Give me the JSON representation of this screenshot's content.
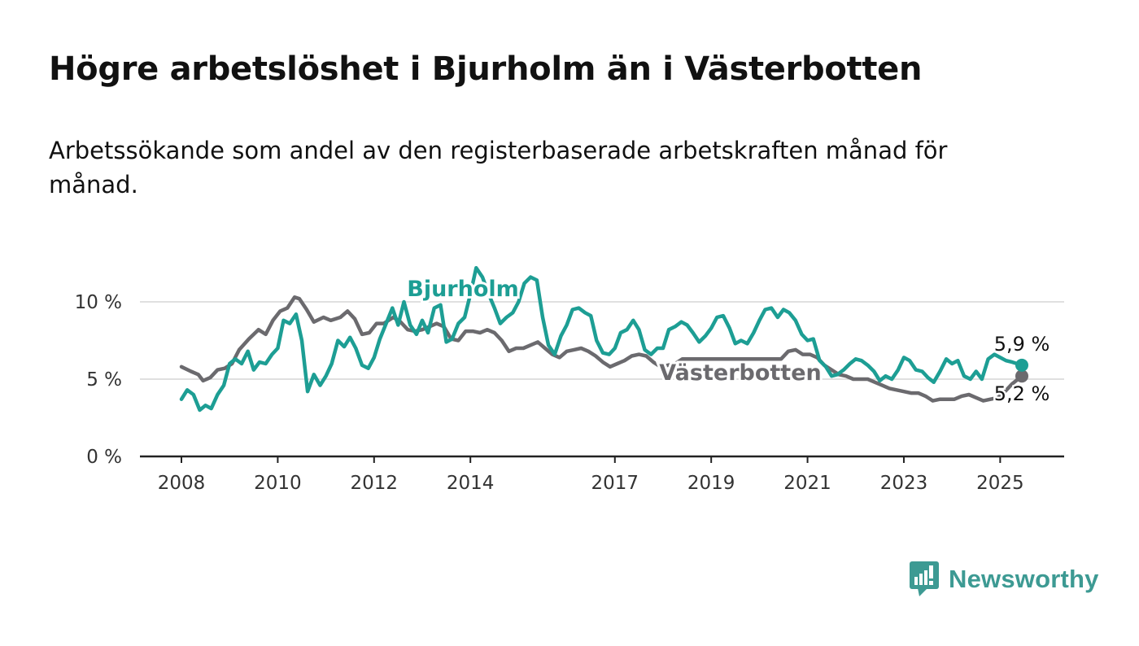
{
  "title": "Högre arbetslöshet i Bjurholm än i Västerbotten",
  "subtitle": "Arbetssökande som andel av den registerbaserade arbetskraften månad för månad.",
  "brand": {
    "name": "Newsworthy",
    "icon": "newsworthy-logo-icon",
    "color": "#3d9a93"
  },
  "chart_data": {
    "type": "line",
    "title": "Högre arbetslöshet i Bjurholm än i Västerbotten",
    "subtitle": "Arbetssökande som andel av den registerbaserade arbetskraften månad för månad.",
    "xlabel": "",
    "ylabel": "",
    "ylim": [
      0,
      12.5
    ],
    "xlim": [
      2008.0,
      2025.6
    ],
    "grid": true,
    "legend": "inline labels",
    "x_ticks": [
      {
        "value": 2008,
        "label": "2008"
      },
      {
        "value": 2010,
        "label": "2010"
      },
      {
        "value": 2012,
        "label": "2012"
      },
      {
        "value": 2014,
        "label": "2014"
      },
      {
        "value": 2017,
        "label": "2017"
      },
      {
        "value": 2019,
        "label": "2019"
      },
      {
        "value": 2021,
        "label": "2021"
      },
      {
        "value": 2023,
        "label": "2023"
      },
      {
        "value": 2025,
        "label": "2025"
      }
    ],
    "y_ticks": [
      {
        "value": 0,
        "label": "0 %"
      },
      {
        "value": 5,
        "label": "5 %"
      },
      {
        "value": 10,
        "label": "10 %"
      }
    ],
    "series": [
      {
        "name": "Västerbotten",
        "color": "#6b6a6e",
        "end_label": "5,2 %",
        "points": [
          [
            2008.0,
            5.8
          ],
          [
            2008.2,
            5.5
          ],
          [
            2008.35,
            5.3
          ],
          [
            2008.45,
            4.9
          ],
          [
            2008.6,
            5.1
          ],
          [
            2008.75,
            5.6
          ],
          [
            2008.9,
            5.7
          ],
          [
            2009.05,
            6.0
          ],
          [
            2009.2,
            6.9
          ],
          [
            2009.4,
            7.6
          ],
          [
            2009.6,
            8.2
          ],
          [
            2009.75,
            7.9
          ],
          [
            2009.9,
            8.8
          ],
          [
            2010.05,
            9.4
          ],
          [
            2010.2,
            9.6
          ],
          [
            2010.35,
            10.3
          ],
          [
            2010.45,
            10.2
          ],
          [
            2010.6,
            9.5
          ],
          [
            2010.75,
            8.7
          ],
          [
            2010.95,
            9.0
          ],
          [
            2011.1,
            8.8
          ],
          [
            2011.3,
            9.0
          ],
          [
            2011.45,
            9.4
          ],
          [
            2011.6,
            8.9
          ],
          [
            2011.75,
            7.9
          ],
          [
            2011.9,
            8.0
          ],
          [
            2012.05,
            8.6
          ],
          [
            2012.2,
            8.6
          ],
          [
            2012.4,
            9.0
          ],
          [
            2012.55,
            8.7
          ],
          [
            2012.7,
            8.2
          ],
          [
            2012.85,
            8.1
          ],
          [
            2013.0,
            8.2
          ],
          [
            2013.15,
            8.4
          ],
          [
            2013.3,
            8.6
          ],
          [
            2013.45,
            8.4
          ],
          [
            2013.6,
            7.6
          ],
          [
            2013.75,
            7.5
          ],
          [
            2013.9,
            8.1
          ],
          [
            2014.05,
            8.1
          ],
          [
            2014.2,
            8.0
          ],
          [
            2014.35,
            8.2
          ],
          [
            2014.5,
            8.0
          ],
          [
            2014.65,
            7.5
          ],
          [
            2014.8,
            6.8
          ],
          [
            2014.95,
            7.0
          ],
          [
            2015.1,
            7.0
          ],
          [
            2015.25,
            7.2
          ],
          [
            2015.4,
            7.4
          ],
          [
            2015.55,
            7.0
          ],
          [
            2015.7,
            6.6
          ],
          [
            2015.85,
            6.4
          ],
          [
            2016.0,
            6.8
          ],
          [
            2016.15,
            6.9
          ],
          [
            2016.3,
            7.0
          ],
          [
            2016.45,
            6.8
          ],
          [
            2016.6,
            6.5
          ],
          [
            2016.75,
            6.1
          ],
          [
            2016.9,
            5.8
          ],
          [
            2017.05,
            6.0
          ],
          [
            2017.2,
            6.2
          ],
          [
            2017.35,
            6.5
          ],
          [
            2017.5,
            6.6
          ],
          [
            2017.65,
            6.5
          ],
          [
            2017.8,
            6.1
          ],
          [
            2017.95,
            5.8
          ],
          [
            2018.1,
            5.9
          ],
          [
            2018.25,
            6.0
          ],
          [
            2018.4,
            6.3
          ],
          [
            2020.45,
            6.3
          ],
          [
            2020.6,
            6.8
          ],
          [
            2020.75,
            6.9
          ],
          [
            2020.9,
            6.6
          ],
          [
            2021.05,
            6.6
          ],
          [
            2021.2,
            6.4
          ],
          [
            2021.35,
            5.9
          ],
          [
            2021.5,
            5.6
          ],
          [
            2021.65,
            5.3
          ],
          [
            2021.8,
            5.2
          ],
          [
            2021.95,
            5.0
          ],
          [
            2022.1,
            5.0
          ],
          [
            2022.25,
            5.0
          ],
          [
            2022.4,
            4.8
          ],
          [
            2022.55,
            4.6
          ],
          [
            2022.7,
            4.4
          ],
          [
            2022.85,
            4.3
          ],
          [
            2023.0,
            4.2
          ],
          [
            2023.15,
            4.1
          ],
          [
            2023.3,
            4.1
          ],
          [
            2023.45,
            3.9
          ],
          [
            2023.6,
            3.6
          ],
          [
            2023.75,
            3.7
          ],
          [
            2023.9,
            3.7
          ],
          [
            2024.05,
            3.7
          ],
          [
            2024.2,
            3.9
          ],
          [
            2024.35,
            4.0
          ],
          [
            2024.5,
            3.8
          ],
          [
            2024.65,
            3.6
          ],
          [
            2024.8,
            3.7
          ],
          [
            2024.95,
            3.8
          ],
          [
            2025.1,
            4.2
          ],
          [
            2025.25,
            4.7
          ],
          [
            2025.45,
            5.2
          ]
        ]
      },
      {
        "name": "Bjurholm",
        "color": "#1d9e94",
        "end_label": "5,9 %",
        "points": [
          [
            2008.0,
            3.7
          ],
          [
            2008.12,
            4.3
          ],
          [
            2008.25,
            4.0
          ],
          [
            2008.38,
            3.0
          ],
          [
            2008.5,
            3.3
          ],
          [
            2008.62,
            3.1
          ],
          [
            2008.75,
            4.0
          ],
          [
            2008.88,
            4.6
          ],
          [
            2009.0,
            6.0
          ],
          [
            2009.12,
            6.3
          ],
          [
            2009.25,
            6.0
          ],
          [
            2009.38,
            6.8
          ],
          [
            2009.5,
            5.6
          ],
          [
            2009.62,
            6.1
          ],
          [
            2009.75,
            6.0
          ],
          [
            2009.88,
            6.6
          ],
          [
            2010.0,
            7.0
          ],
          [
            2010.12,
            8.8
          ],
          [
            2010.25,
            8.6
          ],
          [
            2010.38,
            9.2
          ],
          [
            2010.5,
            7.5
          ],
          [
            2010.62,
            4.2
          ],
          [
            2010.75,
            5.3
          ],
          [
            2010.88,
            4.6
          ],
          [
            2011.0,
            5.2
          ],
          [
            2011.12,
            6.0
          ],
          [
            2011.25,
            7.5
          ],
          [
            2011.38,
            7.1
          ],
          [
            2011.5,
            7.7
          ],
          [
            2011.62,
            7.0
          ],
          [
            2011.75,
            5.9
          ],
          [
            2011.88,
            5.7
          ],
          [
            2012.0,
            6.4
          ],
          [
            2012.12,
            7.6
          ],
          [
            2012.25,
            8.6
          ],
          [
            2012.38,
            9.6
          ],
          [
            2012.5,
            8.5
          ],
          [
            2012.62,
            10.0
          ],
          [
            2012.75,
            8.5
          ],
          [
            2012.88,
            7.9
          ],
          [
            2013.0,
            8.8
          ],
          [
            2013.12,
            8.0
          ],
          [
            2013.25,
            9.6
          ],
          [
            2013.38,
            9.8
          ],
          [
            2013.5,
            7.4
          ],
          [
            2013.62,
            7.6
          ],
          [
            2013.75,
            8.6
          ],
          [
            2013.88,
            9.0
          ],
          [
            2014.0,
            10.5
          ],
          [
            2014.12,
            12.2
          ],
          [
            2014.25,
            11.6
          ],
          [
            2014.38,
            10.5
          ],
          [
            2014.5,
            9.6
          ],
          [
            2014.62,
            8.6
          ],
          [
            2014.75,
            9.0
          ],
          [
            2014.88,
            9.3
          ],
          [
            2015.0,
            10.0
          ],
          [
            2015.12,
            11.2
          ],
          [
            2015.25,
            11.6
          ],
          [
            2015.38,
            11.4
          ],
          [
            2015.5,
            9.0
          ],
          [
            2015.62,
            7.2
          ],
          [
            2015.75,
            6.6
          ],
          [
            2015.88,
            7.8
          ],
          [
            2016.0,
            8.5
          ],
          [
            2016.12,
            9.5
          ],
          [
            2016.25,
            9.6
          ],
          [
            2016.38,
            9.3
          ],
          [
            2016.5,
            9.1
          ],
          [
            2016.62,
            7.5
          ],
          [
            2016.75,
            6.7
          ],
          [
            2016.88,
            6.6
          ],
          [
            2017.0,
            7.0
          ],
          [
            2017.12,
            8.0
          ],
          [
            2017.25,
            8.2
          ],
          [
            2017.38,
            8.8
          ],
          [
            2017.5,
            8.2
          ],
          [
            2017.62,
            6.9
          ],
          [
            2017.75,
            6.6
          ],
          [
            2017.88,
            7.0
          ],
          [
            2018.0,
            7.0
          ],
          [
            2018.12,
            8.2
          ],
          [
            2018.25,
            8.4
          ],
          [
            2018.38,
            8.7
          ],
          [
            2018.5,
            8.5
          ],
          [
            2018.62,
            8.0
          ],
          [
            2018.75,
            7.4
          ],
          [
            2018.88,
            7.8
          ],
          [
            2019.0,
            8.3
          ],
          [
            2019.12,
            9.0
          ],
          [
            2019.25,
            9.1
          ],
          [
            2019.38,
            8.3
          ],
          [
            2019.5,
            7.3
          ],
          [
            2019.62,
            7.5
          ],
          [
            2019.75,
            7.3
          ],
          [
            2019.88,
            8.0
          ],
          [
            2020.0,
            8.8
          ],
          [
            2020.12,
            9.5
          ],
          [
            2020.25,
            9.6
          ],
          [
            2020.38,
            9.0
          ],
          [
            2020.5,
            9.5
          ],
          [
            2020.62,
            9.3
          ],
          [
            2020.75,
            8.8
          ],
          [
            2020.88,
            7.9
          ],
          [
            2021.0,
            7.5
          ],
          [
            2021.12,
            7.6
          ],
          [
            2021.25,
            6.2
          ],
          [
            2021.38,
            5.8
          ],
          [
            2021.5,
            5.2
          ],
          [
            2021.62,
            5.3
          ],
          [
            2021.75,
            5.6
          ],
          [
            2021.88,
            6.0
          ],
          [
            2022.0,
            6.3
          ],
          [
            2022.12,
            6.2
          ],
          [
            2022.25,
            5.9
          ],
          [
            2022.38,
            5.5
          ],
          [
            2022.5,
            4.9
          ],
          [
            2022.62,
            5.2
          ],
          [
            2022.75,
            5.0
          ],
          [
            2022.88,
            5.6
          ],
          [
            2023.0,
            6.4
          ],
          [
            2023.12,
            6.2
          ],
          [
            2023.25,
            5.6
          ],
          [
            2023.38,
            5.5
          ],
          [
            2023.5,
            5.1
          ],
          [
            2023.62,
            4.8
          ],
          [
            2023.75,
            5.5
          ],
          [
            2023.88,
            6.3
          ],
          [
            2024.0,
            6.0
          ],
          [
            2024.12,
            6.2
          ],
          [
            2024.25,
            5.2
          ],
          [
            2024.38,
            5.0
          ],
          [
            2024.5,
            5.5
          ],
          [
            2024.62,
            5.0
          ],
          [
            2024.75,
            6.3
          ],
          [
            2024.88,
            6.6
          ],
          [
            2025.0,
            6.4
          ],
          [
            2025.12,
            6.2
          ],
          [
            2025.25,
            6.1
          ],
          [
            2025.45,
            5.9
          ]
        ]
      }
    ],
    "series_labels": [
      {
        "series": "Bjurholm",
        "text": "Bjurholm"
      },
      {
        "series": "Västerbotten",
        "text": "Västerbotten"
      }
    ]
  }
}
